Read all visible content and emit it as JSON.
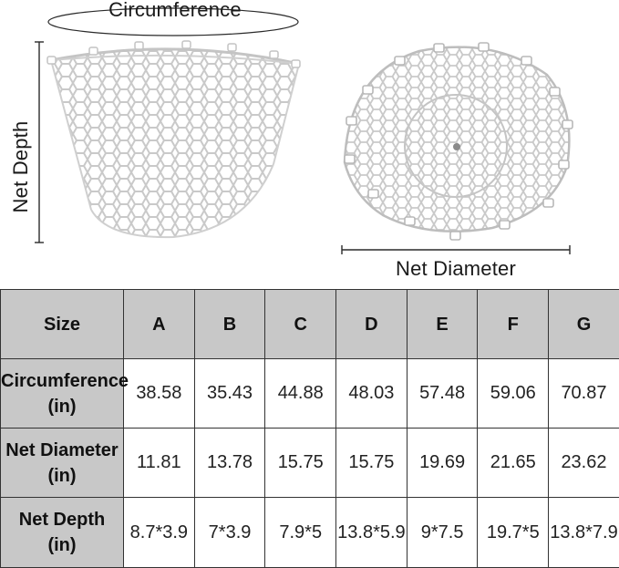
{
  "diagram": {
    "circumference_label": "Circumference",
    "depth_label": "Net Depth",
    "diameter_label": "Net Diameter"
  },
  "table": {
    "header": [
      "Size",
      "A",
      "B",
      "C",
      "D",
      "E",
      "F",
      "G"
    ],
    "rows": [
      {
        "label": "Circumference",
        "unit": "(in)",
        "values": [
          "38.58",
          "35.43",
          "44.88",
          "48.03",
          "57.48",
          "59.06",
          "70.87"
        ]
      },
      {
        "label": "Net Diameter",
        "unit": "(in)",
        "values": [
          "11.81",
          "13.78",
          "15.75",
          "15.75",
          "19.69",
          "21.65",
          "23.62"
        ]
      },
      {
        "label": "Net Depth",
        "unit": "(in)",
        "values": [
          "8.7*3.9",
          "7*3.9",
          "7.9*5",
          "13.8*5.9",
          "9*7.5",
          "19.7*5",
          "13.8*7.9"
        ]
      }
    ]
  },
  "colors": {
    "header_bg": "#c8c8c8",
    "net_stroke": "#c4c4c4",
    "border": "#333333"
  }
}
